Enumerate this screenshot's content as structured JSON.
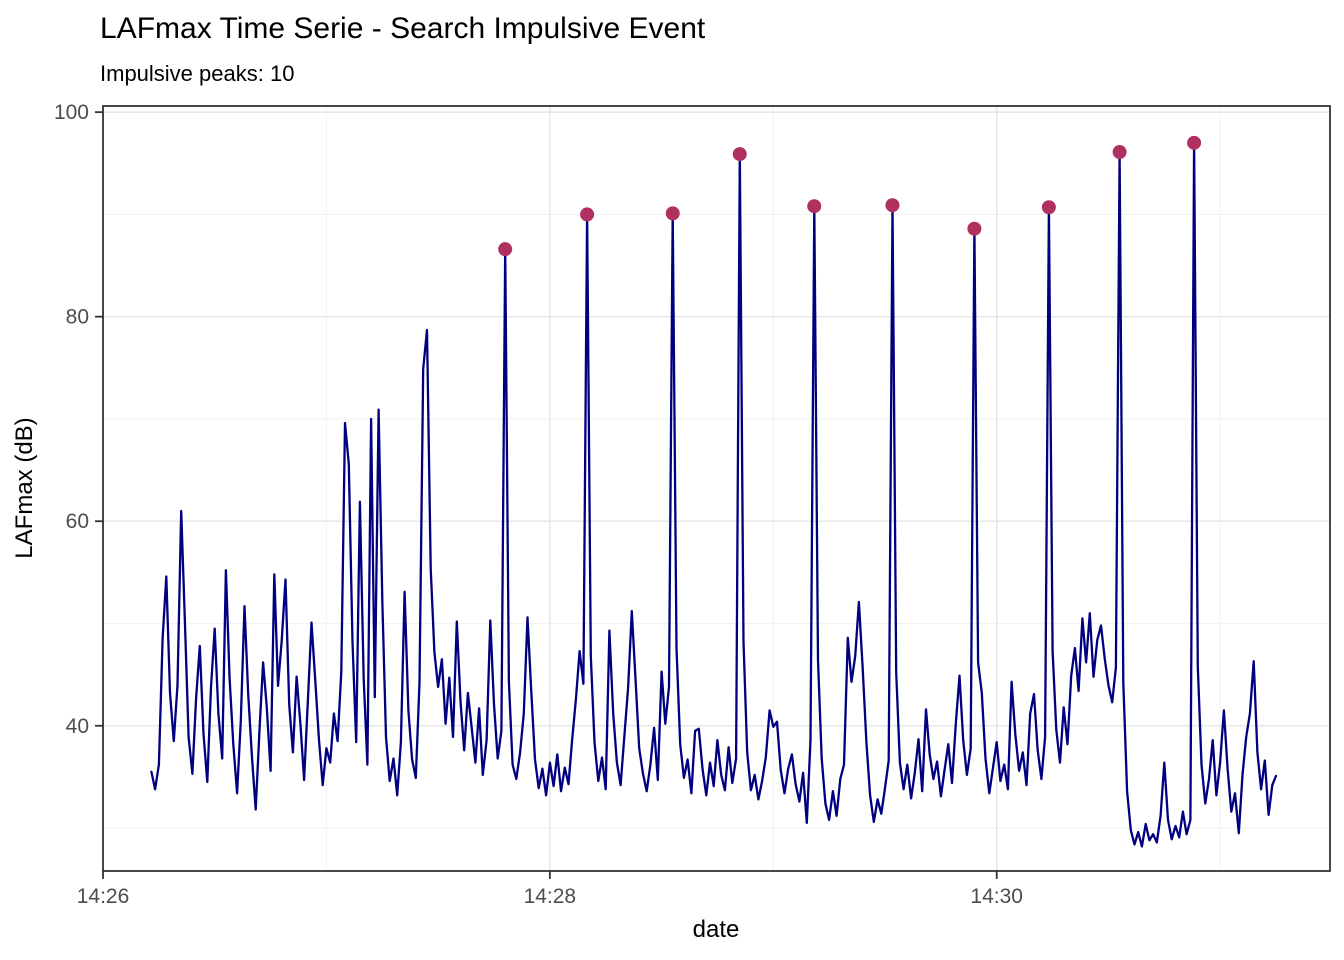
{
  "header": {
    "title": "LAFmax Time Serie - Search Impulsive Event",
    "subtitle": "Impulsive peaks: 10"
  },
  "chart_data": {
    "type": "line",
    "title": "LAFmax Time Serie - Search Impulsive Event",
    "subtitle": "Impulsive peaks: 10",
    "xlabel": "date",
    "ylabel": "LAFmax (dB)",
    "legend": "none",
    "grid": "on",
    "colors": {
      "line": "#000080",
      "peak_marker": "#B03060",
      "grid_major": "#E5E5E5",
      "grid_minor": "#F2F2F2",
      "panel_border": "#333333",
      "tick_label": "#4d4d4d",
      "background": "#FFFFFF"
    },
    "x_axis": {
      "unit": "seconds after 14:26:00",
      "domain": [
        0,
        329.5
      ],
      "major_ticks": [
        {
          "t": 0,
          "label": "14:26"
        },
        {
          "t": 120,
          "label": "14:28"
        },
        {
          "t": 240,
          "label": "14:30"
        }
      ],
      "minor_ticks": [
        60,
        180,
        300
      ]
    },
    "y_axis": {
      "domain": [
        25.8,
        100.6
      ],
      "major_ticks": [
        40,
        60,
        80,
        100
      ],
      "minor_ticks": [
        30,
        50,
        70,
        90
      ]
    },
    "series": [
      {
        "name": "LAFmax",
        "t_start": 13,
        "t_step": 1,
        "values": [
          35.5,
          33.8,
          36.2,
          48.5,
          54.6,
          43.2,
          38.5,
          44.0,
          61.0,
          50.2,
          38.9,
          35.3,
          42.7,
          47.8,
          39.2,
          34.5,
          43.8,
          49.5,
          41.2,
          36.8,
          55.2,
          44.6,
          38.2,
          33.4,
          40.5,
          51.7,
          43.1,
          36.9,
          31.8,
          39.4,
          46.2,
          41.8,
          35.6,
          54.8,
          43.9,
          48.3,
          54.3,
          42.1,
          37.4,
          44.8,
          40.2,
          34.7,
          42.3,
          50.1,
          44.4,
          38.6,
          34.2,
          37.8,
          36.4,
          41.2,
          38.5,
          45.3,
          69.6,
          65.6,
          48.2,
          38.4,
          61.9,
          44.6,
          36.2,
          70.0,
          42.8,
          70.9,
          52.3,
          38.9,
          34.6,
          36.8,
          33.2,
          38.4,
          53.1,
          41.5,
          36.7,
          34.9,
          44.2,
          74.9,
          78.7,
          55.4,
          47.2,
          43.8,
          46.5,
          40.2,
          44.7,
          38.9,
          50.2,
          42.4,
          37.6,
          43.2,
          39.8,
          36.4,
          41.7,
          35.2,
          38.6,
          50.3,
          42.1,
          36.8,
          39.5,
          86.6,
          44.3,
          36.2,
          34.8,
          37.4,
          41.2,
          50.6,
          43.5,
          36.7,
          33.9,
          35.8,
          33.2,
          36.4,
          34.1,
          37.2,
          33.6,
          35.9,
          34.3,
          38.7,
          42.6,
          47.3,
          44.1,
          90.0,
          46.8,
          38.4,
          34.6,
          36.9,
          33.8,
          49.3,
          41.2,
          36.4,
          34.2,
          38.9,
          43.7,
          51.2,
          44.6,
          37.8,
          35.3,
          33.6,
          36.2,
          39.8,
          34.7,
          45.3,
          40.2,
          43.8,
          90.1,
          47.6,
          38.2,
          34.9,
          36.7,
          33.4,
          39.5,
          39.7,
          35.8,
          33.2,
          36.4,
          34.1,
          38.6,
          35.2,
          33.7,
          37.9,
          34.4,
          36.8,
          95.9,
          48.2,
          37.4,
          33.7,
          35.2,
          32.8,
          34.6,
          36.9,
          41.5,
          39.9,
          40.4,
          35.7,
          33.4,
          35.8,
          37.2,
          34.3,
          32.6,
          35.4,
          30.5,
          38.6,
          90.8,
          46.4,
          36.8,
          32.4,
          30.8,
          33.6,
          31.2,
          34.8,
          36.2,
          48.6,
          44.3,
          46.8,
          52.1,
          45.6,
          38.4,
          33.2,
          30.6,
          32.8,
          31.4,
          33.9,
          36.6,
          90.9,
          45.2,
          36.4,
          33.8,
          36.2,
          32.9,
          35.4,
          38.7,
          33.6,
          41.6,
          37.2,
          34.8,
          36.5,
          33.1,
          35.7,
          38.2,
          34.4,
          40.2,
          44.9,
          38.6,
          35.2,
          37.8,
          88.6,
          46.2,
          43.2,
          36.8,
          33.4,
          35.9,
          38.4,
          34.6,
          36.2,
          33.8,
          44.3,
          39.2,
          35.6,
          37.4,
          34.2,
          41.2,
          43.1,
          37.6,
          34.8,
          38.9,
          90.7,
          47.3,
          39.6,
          36.4,
          41.8,
          38.2,
          44.9,
          47.6,
          43.4,
          50.5,
          46.2,
          51.0,
          44.8,
          48.4,
          49.8,
          46.6,
          44.0,
          42.3,
          45.7,
          96.1,
          44.2,
          33.6,
          29.8,
          28.4,
          29.6,
          28.2,
          30.4,
          28.8,
          29.4,
          28.6,
          31.2,
          36.4,
          30.8,
          28.9,
          30.2,
          29.1,
          31.6,
          29.4,
          30.8,
          97.0,
          45.8,
          36.2,
          32.4,
          34.8,
          38.6,
          33.2,
          36.4,
          41.5,
          35.8,
          31.6,
          33.4,
          29.5,
          35.2,
          38.9,
          41.2,
          46.3,
          37.4,
          33.8,
          36.6,
          31.3,
          34.2,
          35.1
        ]
      }
    ],
    "peaks": {
      "name": "Impulsive peaks",
      "count": 10,
      "points": [
        {
          "t": 108,
          "v": 86.6
        },
        {
          "t": 130,
          "v": 90.0
        },
        {
          "t": 153,
          "v": 90.1
        },
        {
          "t": 171,
          "v": 95.9
        },
        {
          "t": 191,
          "v": 90.8
        },
        {
          "t": 212,
          "v": 90.9
        },
        {
          "t": 234,
          "v": 88.6
        },
        {
          "t": 254,
          "v": 90.7
        },
        {
          "t": 273,
          "v": 96.1
        },
        {
          "t": 293,
          "v": 97.0
        }
      ]
    }
  }
}
